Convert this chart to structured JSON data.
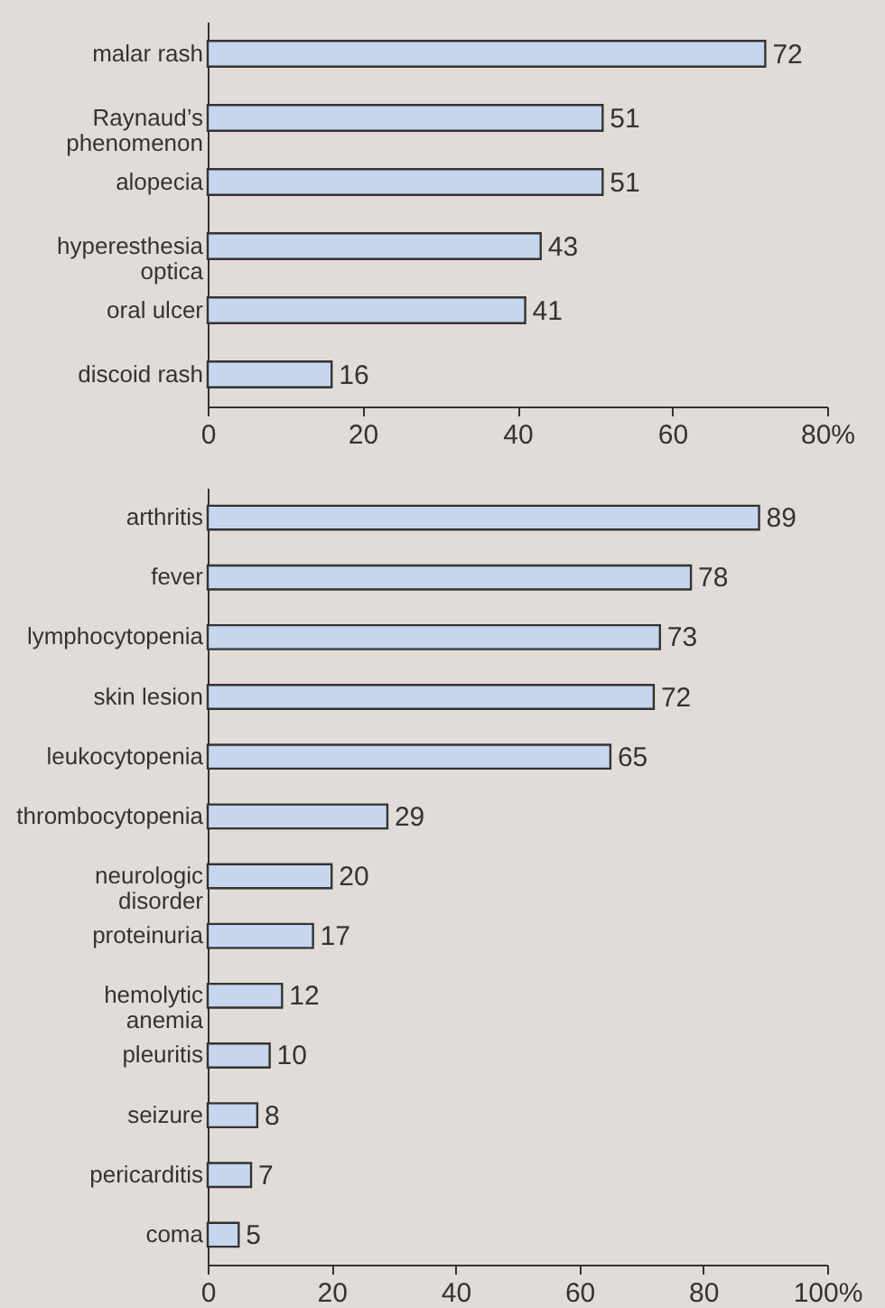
{
  "chart_data": [
    {
      "type": "bar",
      "orientation": "horizontal",
      "categories": [
        "malar rash",
        "Raynaud’s\nphenomenon",
        "alopecia",
        "hyperesthesia\noptica",
        "oral ulcer",
        "discoid rash"
      ],
      "values": [
        72,
        51,
        51,
        43,
        41,
        16
      ],
      "color": "#c6d6ee",
      "data_labels": true,
      "xlim": [
        0,
        80
      ],
      "xticks": [
        0,
        20,
        40,
        60,
        {
          "value": 80,
          "label": "80%"
        }
      ]
    },
    {
      "type": "bar",
      "orientation": "horizontal",
      "categories": [
        "arthritis",
        "fever",
        "lymphocytopenia",
        "skin lesion",
        "leukocytopenia",
        "thrombocytopenia",
        "neurologic\ndisorder",
        "proteinuria",
        "hemolytic\nanemia",
        "pleuritis",
        "seizure",
        "pericarditis",
        "coma"
      ],
      "values": [
        89,
        78,
        73,
        72,
        65,
        29,
        20,
        17,
        12,
        10,
        8,
        7,
        5
      ],
      "color": "#c6d6ee",
      "data_labels": true,
      "xlim": [
        0,
        100
      ],
      "xticks": [
        0,
        20,
        40,
        60,
        80,
        {
          "value": 100,
          "label": "100%"
        }
      ]
    }
  ]
}
